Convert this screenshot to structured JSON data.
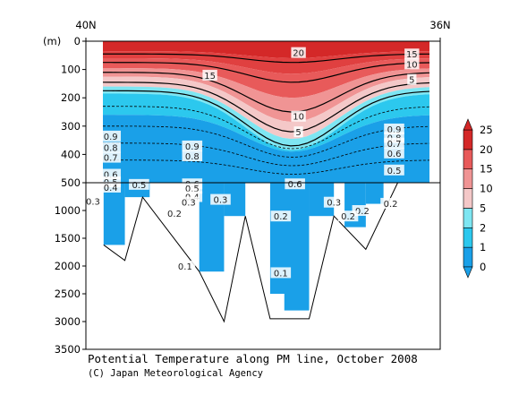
{
  "chart_data": {
    "type": "heatmap",
    "title": "Potential Temperature along PM line, October 2008",
    "credit": "(C) Japan Meteorological Agency",
    "x_ticks": [
      "40N",
      "36N"
    ],
    "y_unit": "(m)",
    "y_ticks_upper": [
      "0",
      "100",
      "200",
      "300",
      "400",
      "500"
    ],
    "y_ticks_lower": [
      "1000",
      "1500",
      "2000",
      "2500",
      "3000",
      "3500"
    ],
    "upper_depth_range": [
      0,
      500
    ],
    "lower_depth_range": [
      500,
      3500
    ],
    "colorbar": {
      "levels": [
        0,
        1,
        2,
        5,
        10,
        15,
        20,
        25
      ],
      "colors": [
        "#1aa0e8",
        "#2cc8ee",
        "#7ee6f2",
        "#f4c8c8",
        "#f09494",
        "#e85a5a",
        "#d42828"
      ]
    },
    "contour_labels": [
      {
        "text": "20",
        "depth": 40,
        "pos": 0.6
      },
      {
        "text": "15",
        "depth": 120,
        "pos": 0.35
      },
      {
        "text": "15",
        "depth": 45,
        "pos": 0.92
      },
      {
        "text": "10",
        "depth": 80,
        "pos": 0.92
      },
      {
        "text": "5",
        "depth": 135,
        "pos": 0.92
      },
      {
        "text": "10",
        "depth": 265,
        "pos": 0.6
      },
      {
        "text": "5",
        "depth": 320,
        "pos": 0.6
      },
      {
        "text": "0.9",
        "depth": 335,
        "pos": 0.07
      },
      {
        "text": "0.8",
        "depth": 375,
        "pos": 0.07
      },
      {
        "text": "0.7",
        "depth": 410,
        "pos": 0.07
      },
      {
        "text": "0.6",
        "depth": 470,
        "pos": 0.07
      },
      {
        "text": "0.5",
        "depth": 497,
        "pos": 0.07
      },
      {
        "text": "0.9",
        "depth": 370,
        "pos": 0.3
      },
      {
        "text": "0.8",
        "depth": 405,
        "pos": 0.3
      },
      {
        "text": "0.9",
        "depth": 310,
        "pos": 0.87
      },
      {
        "text": "0.8",
        "depth": 340,
        "pos": 0.87
      },
      {
        "text": "0.7",
        "depth": 360,
        "pos": 0.87
      },
      {
        "text": "0.6",
        "depth": 395,
        "pos": 0.87
      },
      {
        "text": "0.5",
        "depth": 455,
        "pos": 0.87
      },
      {
        "text": "0.4",
        "depth": 580,
        "pos": 0.07
      },
      {
        "text": "0.3",
        "depth": 830,
        "pos": 0.02
      },
      {
        "text": "0.5",
        "depth": 530,
        "pos": 0.15
      },
      {
        "text": "0.6",
        "depth": 520,
        "pos": 0.3
      },
      {
        "text": "0.5",
        "depth": 600,
        "pos": 0.3
      },
      {
        "text": "0.4",
        "depth": 750,
        "pos": 0.3
      },
      {
        "text": "0.3",
        "depth": 850,
        "pos": 0.29
      },
      {
        "text": "0.3",
        "depth": 800,
        "pos": 0.38
      },
      {
        "text": "0.2",
        "depth": 1050,
        "pos": 0.25
      },
      {
        "text": "0.6",
        "depth": 520,
        "pos": 0.59
      },
      {
        "text": "0.3",
        "depth": 850,
        "pos": 0.7
      },
      {
        "text": "0.2",
        "depth": 1000,
        "pos": 0.78
      },
      {
        "text": "0.2",
        "depth": 1100,
        "pos": 0.55
      },
      {
        "text": "0.2",
        "depth": 1100,
        "pos": 0.74
      },
      {
        "text": "0.2",
        "depth": 870,
        "pos": 0.86
      },
      {
        "text": "0.1",
        "depth": 2120,
        "pos": 0.55
      },
      {
        "text": "0.1",
        "depth": 2000,
        "pos": 0.28
      }
    ]
  }
}
